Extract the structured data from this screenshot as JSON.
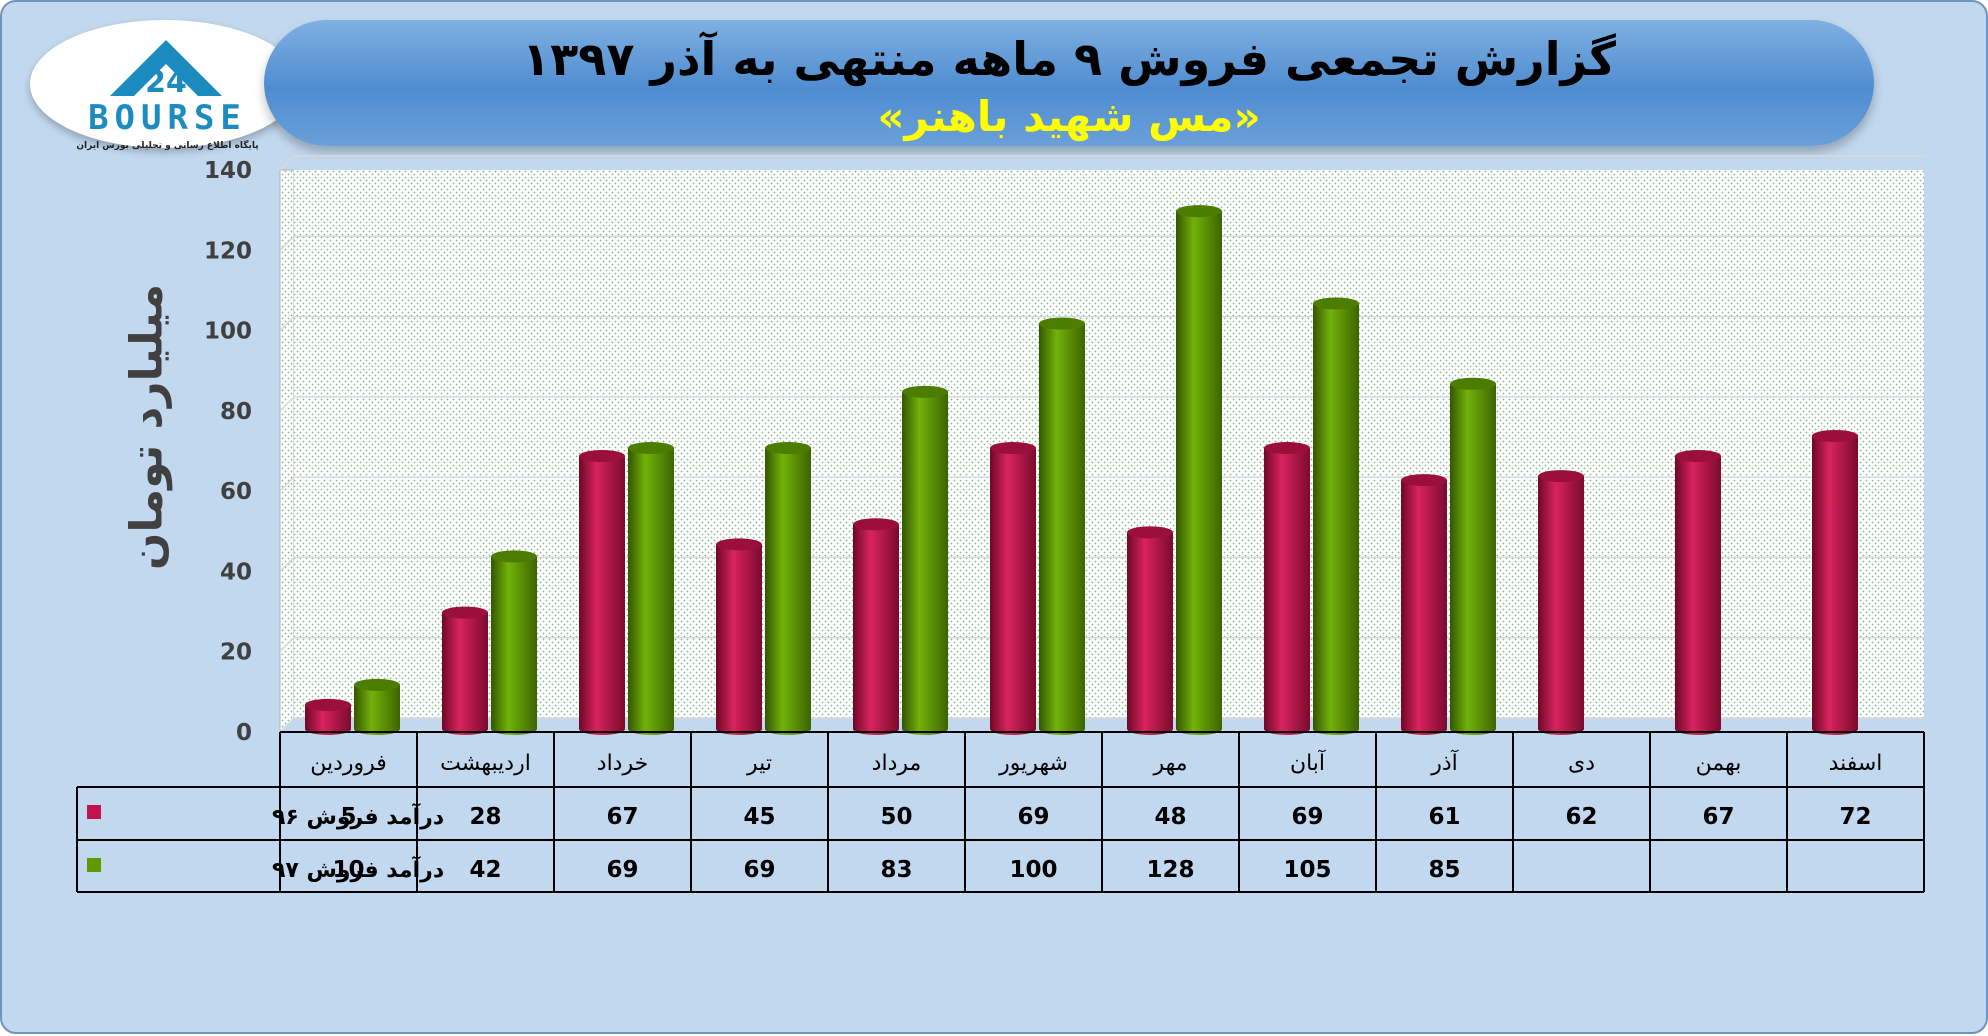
{
  "header": {
    "title": "گزارش تجمعی فروش ۹ ماهه منتهی به آذر ۱۳۹۷",
    "subtitle": "«مس شهید باهنر»"
  },
  "logo": {
    "name": "BOURSE",
    "tagline": "پایگاه اطلاع رسانی و تحلیلی بورس ایران"
  },
  "colors": {
    "series96": "#c2134c",
    "series97": "#5e9a00",
    "background": "#c2d8ee",
    "title_bar": "#4f8cd0"
  },
  "chart_data": {
    "type": "bar",
    "title": "گزارش تجمعی فروش ۹ ماهه منتهی به آذر ۱۳۹۷",
    "subtitle": "«مس شهید باهنر»",
    "ylabel": "میلیارد تومان",
    "xlabel": "",
    "ylim": [
      0,
      140
    ],
    "yticks": [
      0,
      20,
      40,
      60,
      80,
      100,
      120,
      140
    ],
    "grid": true,
    "categories": [
      "فروردین",
      "اردیبهشت",
      "خرداد",
      "تیر",
      "مرداد",
      "شهریور",
      "مهر",
      "آبان",
      "آذر",
      "دی",
      "بهمن",
      "اسفند"
    ],
    "series": [
      {
        "name": "درآمد فروش ۹۶",
        "values": [
          5,
          28,
          67,
          45,
          50,
          69,
          48,
          69,
          61,
          62,
          67,
          72
        ]
      },
      {
        "name": "درآمد فروش ۹۷",
        "values": [
          10,
          42,
          69,
          69,
          83,
          100,
          128,
          105,
          85,
          null,
          null,
          null
        ]
      }
    ],
    "data_table": true
  }
}
